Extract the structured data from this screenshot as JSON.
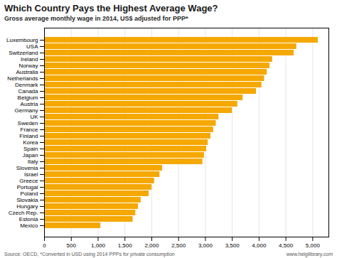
{
  "chart_data": {
    "type": "bar",
    "orientation": "horizontal",
    "title": "Which Country Pays the Highest Average Wage?",
    "subtitle": "Gross average monthly wage in 2014, US$ adjusted for PPP*",
    "annotations": [
      "Source: OECD, *Converted in USD using 2014 PPPs for private consumption",
      "www.helgilibrary.com"
    ],
    "categories": [
      "Mexico",
      "Estonia",
      "Czech Rep.",
      "Hungary",
      "Slovakia",
      "Poland",
      "Portugal",
      "Greece",
      "Israel",
      "Slovenia",
      "Italy",
      "Japan",
      "Spain",
      "Korea",
      "Finland",
      "France",
      "Sweden",
      "UK",
      "Germany",
      "Austria",
      "Belgium",
      "Canada",
      "Denmark",
      "Netherlands",
      "Australia",
      "Norway",
      "Ireland",
      "Switzerland",
      "USA",
      "Luxembourg"
    ],
    "values": [
      1050,
      1650,
      1700,
      1750,
      1800,
      1950,
      2000,
      2050,
      2150,
      2200,
      2950,
      2980,
      3020,
      3050,
      3100,
      3150,
      3200,
      3250,
      3500,
      3600,
      3700,
      3950,
      4050,
      4100,
      4150,
      4200,
      4250,
      4650,
      4700,
      5100
    ],
    "color": "#F5A800",
    "xlim": [
      0,
      5300
    ],
    "xticks": [
      0,
      500,
      {
        "value": 1000,
        "label": "1,000"
      },
      {
        "value": 1500,
        "label": "1,500"
      },
      {
        "value": 2000,
        "label": "2,000"
      },
      {
        "value": 2500,
        "label": "2,500"
      },
      {
        "value": 3000,
        "label": "3,000"
      },
      {
        "value": 3500,
        "label": "3,500"
      },
      {
        "value": 4000,
        "label": "4,000"
      },
      {
        "value": 4500,
        "label": "4,500"
      },
      {
        "value": 5000,
        "label": "5,000"
      }
    ],
    "grid": true
  }
}
